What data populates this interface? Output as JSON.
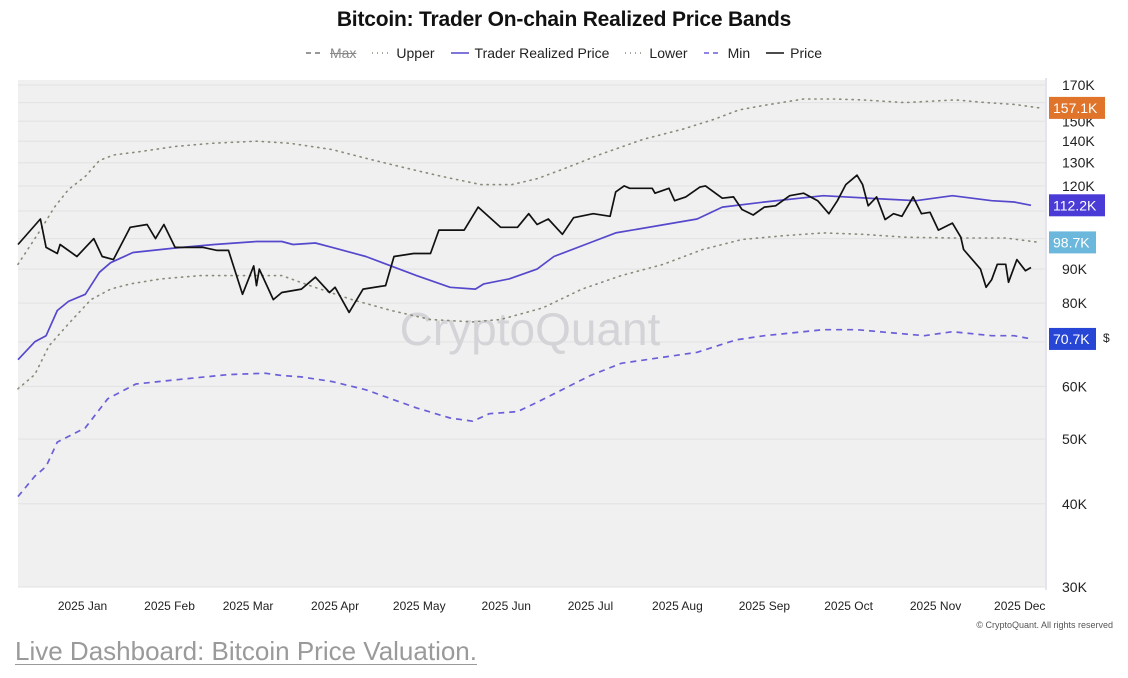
{
  "chart_data": {
    "type": "line",
    "title": "Bitcoin: Trader On-chain Realized Price Bands",
    "xlabel": "",
    "ylabel": "",
    "x_unit": "days since 2025-01-01",
    "xlim": [
      -23,
      343
    ],
    "ylim": [
      30,
      173
    ],
    "yscale": "log",
    "grid": true,
    "legend_placement": "top-center",
    "watermark": "CryptoQuant",
    "y_axis_symbol": "$",
    "x_ticks": [
      {
        "day": 0,
        "label": "2025 Jan"
      },
      {
        "day": 31,
        "label": "2025 Feb"
      },
      {
        "day": 59,
        "label": "2025 Mar"
      },
      {
        "day": 90,
        "label": "2025 Apr"
      },
      {
        "day": 120,
        "label": "2025 May"
      },
      {
        "day": 151,
        "label": "2025 Jun"
      },
      {
        "day": 181,
        "label": "2025 Jul"
      },
      {
        "day": 212,
        "label": "2025 Aug"
      },
      {
        "day": 243,
        "label": "2025 Sep"
      },
      {
        "day": 273,
        "label": "2025 Oct"
      },
      {
        "day": 304,
        "label": "2025 Nov"
      },
      {
        "day": 334,
        "label": "2025 Dec"
      }
    ],
    "y_ticks": [
      {
        "value": 170,
        "label": "170K"
      },
      {
        "value": 150,
        "label": "150K"
      },
      {
        "value": 140,
        "label": "140K"
      },
      {
        "value": 130,
        "label": "130K"
      },
      {
        "value": 120,
        "label": "120K"
      },
      {
        "value": 90,
        "label": "90K"
      },
      {
        "value": 80,
        "label": "80K"
      },
      {
        "value": 60,
        "label": "60K"
      },
      {
        "value": 50,
        "label": "50K"
      },
      {
        "value": 40,
        "label": "40K"
      },
      {
        "value": 30,
        "label": "30K"
      }
    ],
    "y_grid": [
      30,
      40,
      50,
      60,
      70,
      80,
      90,
      100,
      110,
      120,
      130,
      140,
      150,
      160,
      170
    ],
    "series": [
      {
        "name": "Max",
        "visible": false,
        "color": "#777777",
        "style": "dashed",
        "points": []
      },
      {
        "name": "Upper",
        "visible": true,
        "color": "#8a8a7a",
        "style": "dotted",
        "last_label": "157.1K",
        "badge_color": "#e0742a",
        "points": [
          [
            -23,
            91.5
          ],
          [
            -15,
            103
          ],
          [
            -10,
            111.5
          ],
          [
            -5,
            118.5
          ],
          [
            1,
            124
          ],
          [
            6,
            131
          ],
          [
            11,
            133.5
          ],
          [
            20,
            135
          ],
          [
            33,
            137.5
          ],
          [
            46,
            139
          ],
          [
            62,
            140
          ],
          [
            74,
            139
          ],
          [
            89,
            136
          ],
          [
            101,
            132
          ],
          [
            114,
            128
          ],
          [
            128,
            124
          ],
          [
            142,
            120.5
          ],
          [
            153,
            120.5
          ],
          [
            162,
            123
          ],
          [
            171,
            127
          ],
          [
            185,
            134
          ],
          [
            200,
            141
          ],
          [
            214,
            146
          ],
          [
            225,
            151
          ],
          [
            234,
            156
          ],
          [
            243,
            158.5
          ],
          [
            257,
            162
          ],
          [
            268,
            162
          ],
          [
            278,
            161.5
          ],
          [
            293,
            160
          ],
          [
            311,
            161.5
          ],
          [
            322,
            160
          ],
          [
            332,
            159
          ],
          [
            341,
            157.1
          ]
        ]
      },
      {
        "name": "Trader Realized Price",
        "visible": true,
        "color": "#5548cc",
        "style": "solid",
        "last_label": "112.2K",
        "badge_color": "#4a3bd6",
        "points": [
          [
            -23,
            65.8
          ],
          [
            -17,
            70
          ],
          [
            -13,
            71.5
          ],
          [
            -9,
            78
          ],
          [
            -5,
            80.5
          ],
          [
            1,
            82.5
          ],
          [
            6,
            89
          ],
          [
            10,
            92
          ],
          [
            18,
            95.3
          ],
          [
            33,
            96.8
          ],
          [
            47,
            98
          ],
          [
            62,
            99
          ],
          [
            71,
            99
          ],
          [
            75,
            98
          ],
          [
            83,
            98.5
          ],
          [
            89,
            97
          ],
          [
            101,
            94
          ],
          [
            119,
            88
          ],
          [
            131,
            84.5
          ],
          [
            140,
            84
          ],
          [
            143,
            85.5
          ],
          [
            152,
            87
          ],
          [
            162,
            90
          ],
          [
            168,
            94
          ],
          [
            182,
            99
          ],
          [
            190,
            102
          ],
          [
            219,
            107
          ],
          [
            228,
            111.5
          ],
          [
            243,
            113.5
          ],
          [
            264,
            116
          ],
          [
            288,
            114.5
          ],
          [
            297,
            114
          ],
          [
            310,
            116
          ],
          [
            324,
            114
          ],
          [
            332,
            113.5
          ],
          [
            338,
            112.2
          ]
        ]
      },
      {
        "name": "Lower",
        "visible": true,
        "color": "#8a8a7a",
        "style": "dotted",
        "last_label": "98.7K",
        "badge_color": "#6cb8dc",
        "points": [
          [
            -23,
            59.5
          ],
          [
            -17,
            62.5
          ],
          [
            -12,
            69
          ],
          [
            -5,
            74.5
          ],
          [
            3,
            81
          ],
          [
            10,
            84
          ],
          [
            17,
            85.5
          ],
          [
            28,
            87
          ],
          [
            42,
            88
          ],
          [
            56,
            88
          ],
          [
            71,
            88
          ],
          [
            81,
            85
          ],
          [
            96,
            81
          ],
          [
            110,
            78
          ],
          [
            124,
            75.6
          ],
          [
            139,
            75
          ],
          [
            149,
            75.6
          ],
          [
            164,
            78.7
          ],
          [
            178,
            84
          ],
          [
            192,
            88
          ],
          [
            207,
            91.5
          ],
          [
            221,
            96.3
          ],
          [
            235,
            99.7
          ],
          [
            250,
            101
          ],
          [
            264,
            102
          ],
          [
            278,
            101.5
          ],
          [
            293,
            100.5
          ],
          [
            311,
            100.2
          ],
          [
            329,
            100.2
          ],
          [
            341,
            98.7
          ]
        ]
      },
      {
        "name": "Min",
        "visible": true,
        "color": "#6a5fd8",
        "style": "dashed",
        "last_label": "70.7K",
        "badge_color": "#2746d6",
        "points": [
          [
            -23,
            41
          ],
          [
            -17,
            44
          ],
          [
            -13,
            45.5
          ],
          [
            -9,
            49.5
          ],
          [
            1,
            52
          ],
          [
            9,
            57.5
          ],
          [
            19,
            60.5
          ],
          [
            35,
            61.5
          ],
          [
            52,
            62.5
          ],
          [
            65,
            62.8
          ],
          [
            71,
            62.3
          ],
          [
            78,
            62
          ],
          [
            89,
            61
          ],
          [
            101,
            59.3
          ],
          [
            119,
            55.7
          ],
          [
            131,
            53.8
          ],
          [
            139,
            53.2
          ],
          [
            145,
            54.6
          ],
          [
            155,
            55
          ],
          [
            162,
            56.8
          ],
          [
            181,
            62.3
          ],
          [
            192,
            65
          ],
          [
            219,
            67.5
          ],
          [
            233,
            70.5
          ],
          [
            243,
            71.5
          ],
          [
            264,
            73
          ],
          [
            276,
            73
          ],
          [
            300,
            71.5
          ],
          [
            310,
            72.5
          ],
          [
            324,
            71.5
          ],
          [
            332,
            71.5
          ],
          [
            338,
            70.7
          ]
        ]
      },
      {
        "name": "Price",
        "visible": true,
        "color": "#111111",
        "style": "solid",
        "points": [
          [
            -23,
            98
          ],
          [
            -15,
            107
          ],
          [
            -13,
            97
          ],
          [
            -9,
            95
          ],
          [
            -8,
            98
          ],
          [
            -2,
            94
          ],
          [
            4,
            100
          ],
          [
            7,
            94
          ],
          [
            11,
            93
          ],
          [
            17,
            104
          ],
          [
            23,
            105
          ],
          [
            26,
            100
          ],
          [
            29,
            105
          ],
          [
            33,
            97
          ],
          [
            43,
            97
          ],
          [
            48,
            96
          ],
          [
            52,
            96
          ],
          [
            57,
            82.5
          ],
          [
            61,
            91
          ],
          [
            62,
            85
          ],
          [
            63,
            90
          ],
          [
            68,
            81
          ],
          [
            71,
            83
          ],
          [
            78,
            84
          ],
          [
            83,
            87.5
          ],
          [
            88,
            83
          ],
          [
            90,
            84.5
          ],
          [
            95,
            77.5
          ],
          [
            100,
            84
          ],
          [
            108,
            85
          ],
          [
            111,
            94
          ],
          [
            118,
            95
          ],
          [
            124,
            95
          ],
          [
            127,
            103
          ],
          [
            136,
            103
          ],
          [
            141,
            111.5
          ],
          [
            149,
            104
          ],
          [
            155,
            104
          ],
          [
            159,
            109
          ],
          [
            162,
            105
          ],
          [
            166,
            107
          ],
          [
            171,
            101.5
          ],
          [
            175,
            107.5
          ],
          [
            182,
            109
          ],
          [
            188,
            108
          ],
          [
            190,
            117.5
          ],
          [
            193,
            120
          ],
          [
            195,
            119
          ],
          [
            203,
            119
          ],
          [
            204,
            117
          ],
          [
            209,
            119
          ],
          [
            211,
            114
          ],
          [
            215,
            115.5
          ],
          [
            220,
            119.5
          ],
          [
            222,
            120
          ],
          [
            228,
            115
          ],
          [
            232,
            115.5
          ],
          [
            235,
            110.6
          ],
          [
            239,
            108.5
          ],
          [
            243,
            111.5
          ],
          [
            247,
            112
          ],
          [
            252,
            116
          ],
          [
            257,
            117
          ],
          [
            262,
            114
          ],
          [
            266,
            109
          ],
          [
            269,
            114
          ],
          [
            272,
            120.5
          ],
          [
            276,
            124.5
          ],
          [
            278,
            120.5
          ],
          [
            280,
            112
          ],
          [
            283,
            115.5
          ],
          [
            286,
            106.8
          ],
          [
            289,
            109
          ],
          [
            292,
            108
          ],
          [
            296,
            115.5
          ],
          [
            299,
            109
          ],
          [
            302,
            109.5
          ],
          [
            305,
            103
          ],
          [
            310,
            105.5
          ],
          [
            313,
            100.5
          ],
          [
            314,
            96.3
          ],
          [
            320,
            90
          ],
          [
            322,
            84.5
          ],
          [
            324,
            86.8
          ],
          [
            326,
            91.5
          ],
          [
            329,
            91.5
          ],
          [
            330,
            86
          ],
          [
            333,
            93
          ],
          [
            336,
            89.5
          ],
          [
            338,
            90.5
          ]
        ]
      }
    ]
  },
  "legend": [
    {
      "label": "Max"
    },
    {
      "label": "Upper"
    },
    {
      "label": "Trader Realized Price"
    },
    {
      "label": "Lower"
    },
    {
      "label": "Min"
    },
    {
      "label": "Price"
    }
  ],
  "footer": "© CryptoQuant. All rights reserved",
  "link": "Live Dashboard: Bitcoin Price Valuation."
}
